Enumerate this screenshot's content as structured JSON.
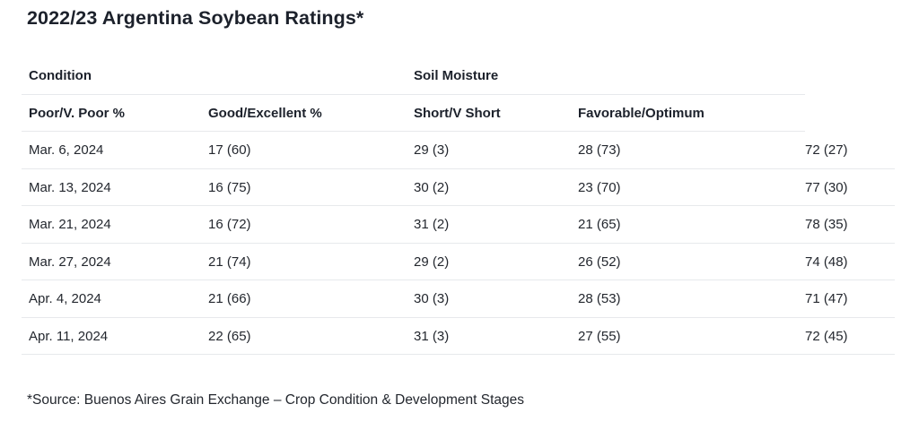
{
  "chart_data": {
    "type": "table",
    "title": "2022/23 Argentina Soybean Ratings*",
    "group_headers": [
      {
        "label": "Condition",
        "span": 2
      },
      {
        "label": "Soil Moisture",
        "span": 2
      },
      {
        "label": "",
        "span": 1
      }
    ],
    "column_headers": [
      "Poor/V. Poor %",
      "Good/Excellent %",
      "Short/V Short",
      "Favorable/Optimum",
      ""
    ],
    "rows": [
      {
        "cells": [
          "Mar. 6, 2024",
          "17 (60)",
          "29 (3)",
          "28 (73)",
          "72 (27)"
        ]
      },
      {
        "cells": [
          "Mar. 13, 2024",
          "16 (75)",
          "30 (2)",
          "23 (70)",
          "77 (30)"
        ]
      },
      {
        "cells": [
          "Mar. 21, 2024",
          "16 (72)",
          "31 (2)",
          "21 (65)",
          "78 (35)"
        ]
      },
      {
        "cells": [
          "Mar. 27, 2024",
          "21 (74)",
          "29 (2)",
          "26 (52)",
          "74 (48)"
        ]
      },
      {
        "cells": [
          "Apr. 4, 2024",
          "21 (66)",
          "30 (3)",
          "28 (53)",
          "71 (47)"
        ]
      },
      {
        "cells": [
          "Apr. 11, 2024",
          "22 (65)",
          "31 (3)",
          "27 (55)",
          "72 (45)"
        ]
      }
    ],
    "source_note": "*Source: Buenos Aires Grain Exchange – Crop Condition & Development Stages",
    "layout": {
      "grid": "horizontal-row-dividers-only",
      "header_divider_extent": "columns-1-4",
      "row_divider_extent": "full-width"
    }
  },
  "colors": {
    "background": "#ffffff",
    "text": "#23272e",
    "title_text": "#1c212b",
    "divider": "#e7e9ec"
  }
}
